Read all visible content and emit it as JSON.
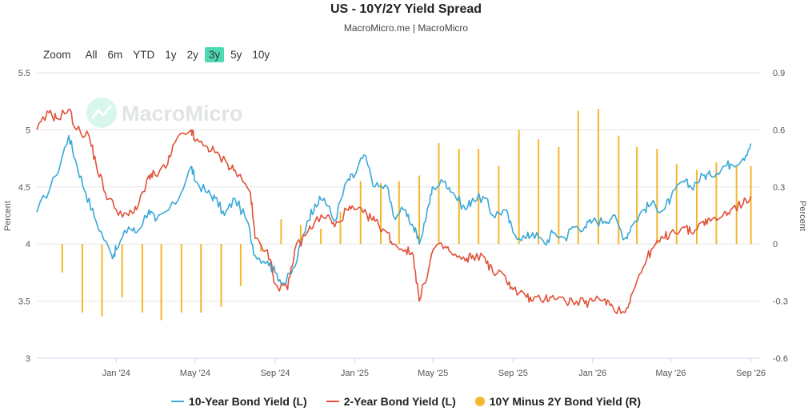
{
  "header": {
    "title": "US - 10Y/2Y Yield Spread",
    "subtitle": "MacroMicro.me | MacroMicro"
  },
  "watermark": {
    "text": "MacroMicro"
  },
  "zoom": {
    "label": "Zoom",
    "buttons": [
      "All",
      "6m",
      "YTD",
      "1y",
      "2y",
      "3y",
      "5y",
      "10y"
    ],
    "active": "3y"
  },
  "colors": {
    "ten_year": "#3aa9d6",
    "two_year": "#e0523a",
    "spread": "#f4b72e",
    "grid": "#e6e6e6",
    "zoom_active": "#4fd8b4"
  },
  "chart_data": {
    "type": "line",
    "title": "US - 10Y/2Y Yield Spread",
    "subtitle": "MacroMicro.me | MacroMicro",
    "x_ticks": [
      "Jan '24",
      "May '24",
      "Sep '24",
      "Jan '25",
      "May '25",
      "Sep '25",
      "Jan '26",
      "May '26",
      "Sep '26"
    ],
    "x_range": [
      "2023-09",
      "2026-09"
    ],
    "y_left": {
      "label": "Percent",
      "min": 3,
      "max": 5.5,
      "ticks": [
        "3",
        "3.5",
        "4",
        "4.5",
        "5",
        "5.5"
      ]
    },
    "y_right": {
      "label": "Percent",
      "min": -0.6,
      "max": 0.9,
      "ticks": [
        "-0.6",
        "-0.3",
        "0",
        "0.3",
        "0.6",
        "0.9"
      ]
    },
    "grid": true,
    "legend_position": "bottom",
    "series": [
      {
        "name": "10-Year Bond Yield (L)",
        "axis": "left",
        "type": "line",
        "points": [
          [
            "2023-09",
            4.28
          ],
          [
            "2023-10",
            4.6
          ],
          [
            "2023-10-20",
            4.95
          ],
          [
            "2023-11",
            4.7
          ],
          [
            "2023-11-15",
            4.45
          ],
          [
            "2023-12",
            4.2
          ],
          [
            "2023-12-25",
            3.9
          ],
          [
            "2024-01",
            3.95
          ],
          [
            "2024-01-20",
            4.15
          ],
          [
            "2024-02",
            4.1
          ],
          [
            "2024-02-20",
            4.3
          ],
          [
            "2024-03",
            4.2
          ],
          [
            "2024-04",
            4.35
          ],
          [
            "2024-04-25",
            4.68
          ],
          [
            "2024-05",
            4.55
          ],
          [
            "2024-05-20",
            4.45
          ],
          [
            "2024-06",
            4.4
          ],
          [
            "2024-06-15",
            4.25
          ],
          [
            "2024-07",
            4.4
          ],
          [
            "2024-07-20",
            4.2
          ],
          [
            "2024-08",
            3.9
          ],
          [
            "2024-08-20",
            3.85
          ],
          [
            "2024-09",
            3.75
          ],
          [
            "2024-09-15",
            3.65
          ],
          [
            "2024-10",
            3.8
          ],
          [
            "2024-10-20",
            4.2
          ],
          [
            "2024-11",
            4.35
          ],
          [
            "2024-11-15",
            4.4
          ],
          [
            "2024-12",
            4.2
          ],
          [
            "2024-12-20",
            4.55
          ],
          [
            "2025-01",
            4.6
          ],
          [
            "2025-01-15",
            4.78
          ],
          [
            "2025-02",
            4.5
          ],
          [
            "2025-02-20",
            4.5
          ],
          [
            "2025-03",
            4.25
          ],
          [
            "2025-03-20",
            4.3
          ],
          [
            "2025-04",
            4.15
          ],
          [
            "2025-04-10",
            4.0
          ],
          [
            "2025-04-25",
            4.35
          ],
          [
            "2025-05",
            4.5
          ],
          [
            "2025-05-20",
            4.55
          ],
          [
            "2025-06",
            4.45
          ],
          [
            "2025-06-20",
            4.3
          ],
          [
            "2025-07",
            4.4
          ],
          [
            "2025-07-20",
            4.4
          ],
          [
            "2025-08",
            4.25
          ],
          [
            "2025-08-20",
            4.3
          ],
          [
            "2025-09",
            4.1
          ],
          [
            "2025-09-20",
            4.05
          ],
          [
            "2025-10",
            4.1
          ],
          [
            "2025-10-20",
            4.0
          ],
          [
            "2025-11",
            4.1
          ],
          [
            "2025-11-20",
            4.05
          ],
          [
            "2025-12",
            4.15
          ],
          [
            "2025-12-20",
            4.15
          ],
          [
            "2026-01",
            4.2
          ],
          [
            "2026-01-20",
            4.2
          ],
          [
            "2026-02",
            4.25
          ],
          [
            "2026-02-20",
            4.05
          ],
          [
            "2026-03",
            4.15
          ],
          [
            "2026-03-20",
            4.3
          ],
          [
            "2026-04",
            4.35
          ],
          [
            "2026-04-20",
            4.3
          ],
          [
            "2026-05",
            4.4
          ],
          [
            "2026-05-20",
            4.55
          ],
          [
            "2026-06",
            4.5
          ],
          [
            "2026-06-20",
            4.6
          ],
          [
            "2026-07",
            4.6
          ],
          [
            "2026-07-20",
            4.68
          ],
          [
            "2026-08",
            4.7
          ],
          [
            "2026-08-20",
            4.75
          ],
          [
            "2026-09",
            4.88
          ]
        ]
      },
      {
        "name": "2-Year Bond Yield (L)",
        "axis": "left",
        "type": "line",
        "points": [
          [
            "2023-09",
            5.0
          ],
          [
            "2023-09-20",
            5.15
          ],
          [
            "2023-10",
            5.1
          ],
          [
            "2023-10-20",
            5.18
          ],
          [
            "2023-11",
            5.0
          ],
          [
            "2023-11-20",
            4.95
          ],
          [
            "2023-12",
            4.7
          ],
          [
            "2023-12-15",
            4.45
          ],
          [
            "2024-01",
            4.3
          ],
          [
            "2024-01-20",
            4.25
          ],
          [
            "2024-02",
            4.3
          ],
          [
            "2024-02-20",
            4.6
          ],
          [
            "2024-03",
            4.6
          ],
          [
            "2024-03-20",
            4.7
          ],
          [
            "2024-04",
            4.9
          ],
          [
            "2024-04-25",
            5.0
          ],
          [
            "2024-05",
            4.9
          ],
          [
            "2024-05-20",
            4.85
          ],
          [
            "2024-06",
            4.8
          ],
          [
            "2024-06-20",
            4.7
          ],
          [
            "2024-07",
            4.65
          ],
          [
            "2024-07-25",
            4.45
          ],
          [
            "2024-08",
            4.05
          ],
          [
            "2024-08-20",
            3.95
          ],
          [
            "2024-09",
            3.65
          ],
          [
            "2024-09-20",
            3.6
          ],
          [
            "2024-10",
            3.95
          ],
          [
            "2024-10-20",
            4.1
          ],
          [
            "2024-11",
            4.2
          ],
          [
            "2024-11-20",
            4.25
          ],
          [
            "2024-12",
            4.15
          ],
          [
            "2024-12-20",
            4.3
          ],
          [
            "2025-01",
            4.3
          ],
          [
            "2025-01-20",
            4.25
          ],
          [
            "2025-02",
            4.2
          ],
          [
            "2025-02-20",
            4.1
          ],
          [
            "2025-03",
            4.0
          ],
          [
            "2025-03-20",
            3.95
          ],
          [
            "2025-04",
            3.9
          ],
          [
            "2025-04-10",
            3.5
          ],
          [
            "2025-04-25",
            3.8
          ],
          [
            "2025-05",
            3.95
          ],
          [
            "2025-05-20",
            3.98
          ],
          [
            "2025-06",
            3.9
          ],
          [
            "2025-06-20",
            3.85
          ],
          [
            "2025-07",
            3.9
          ],
          [
            "2025-07-20",
            3.88
          ],
          [
            "2025-08",
            3.75
          ],
          [
            "2025-08-20",
            3.72
          ],
          [
            "2025-09",
            3.6
          ],
          [
            "2025-09-20",
            3.55
          ],
          [
            "2025-10",
            3.5
          ],
          [
            "2025-10-20",
            3.52
          ],
          [
            "2025-11",
            3.55
          ],
          [
            "2025-11-20",
            3.5
          ],
          [
            "2025-12",
            3.5
          ],
          [
            "2025-12-20",
            3.48
          ],
          [
            "2026-01",
            3.5
          ],
          [
            "2026-01-20",
            3.52
          ],
          [
            "2026-02",
            3.45
          ],
          [
            "2026-02-20",
            3.4
          ],
          [
            "2026-03",
            3.55
          ],
          [
            "2026-03-20",
            3.8
          ],
          [
            "2026-04",
            3.95
          ],
          [
            "2026-04-20",
            4.05
          ],
          [
            "2026-05",
            4.1
          ],
          [
            "2026-05-20",
            4.15
          ],
          [
            "2026-06",
            4.1
          ],
          [
            "2026-06-20",
            4.2
          ],
          [
            "2026-07",
            4.2
          ],
          [
            "2026-07-20",
            4.25
          ],
          [
            "2026-08",
            4.3
          ],
          [
            "2026-08-20",
            4.35
          ],
          [
            "2026-09",
            4.42
          ]
        ]
      },
      {
        "name": "10Y Minus 2Y Bond Yield (R)",
        "axis": "right",
        "type": "bar",
        "points": [
          [
            "2023-10-10",
            -0.15
          ],
          [
            "2023-11-10",
            -0.36
          ],
          [
            "2023-12-10",
            -0.38
          ],
          [
            "2024-01-10",
            -0.28
          ],
          [
            "2024-02-10",
            -0.36
          ],
          [
            "2024-03-10",
            -0.4
          ],
          [
            "2024-04-10",
            -0.36
          ],
          [
            "2024-05-10",
            -0.36
          ],
          [
            "2024-06-10",
            -0.33
          ],
          [
            "2024-07-10",
            -0.22
          ],
          [
            "2024-08-10",
            -0.04
          ],
          [
            "2024-09-10",
            0.13
          ],
          [
            "2024-10-10",
            0.1
          ],
          [
            "2024-11-10",
            0.08
          ],
          [
            "2024-12-10",
            0.17
          ],
          [
            "2025-01-10",
            0.33
          ],
          [
            "2025-02-10",
            0.32
          ],
          [
            "2025-03-10",
            0.33
          ],
          [
            "2025-04-10",
            0.36
          ],
          [
            "2025-05-10",
            0.53
          ],
          [
            "2025-06-10",
            0.5
          ],
          [
            "2025-07-10",
            0.5
          ],
          [
            "2025-08-10",
            0.41
          ],
          [
            "2025-09-10",
            0.6
          ],
          [
            "2025-10-10",
            0.55
          ],
          [
            "2025-11-10",
            0.51
          ],
          [
            "2025-12-10",
            0.7
          ],
          [
            "2026-01-10",
            0.71
          ],
          [
            "2026-02-10",
            0.57
          ],
          [
            "2026-03-10",
            0.51
          ],
          [
            "2026-04-10",
            0.5
          ],
          [
            "2026-05-10",
            0.42
          ],
          [
            "2026-06-10",
            0.39
          ],
          [
            "2026-07-10",
            0.43
          ],
          [
            "2026-08-10",
            0.41
          ],
          [
            "2026-09-01",
            0.41
          ]
        ]
      }
    ]
  }
}
